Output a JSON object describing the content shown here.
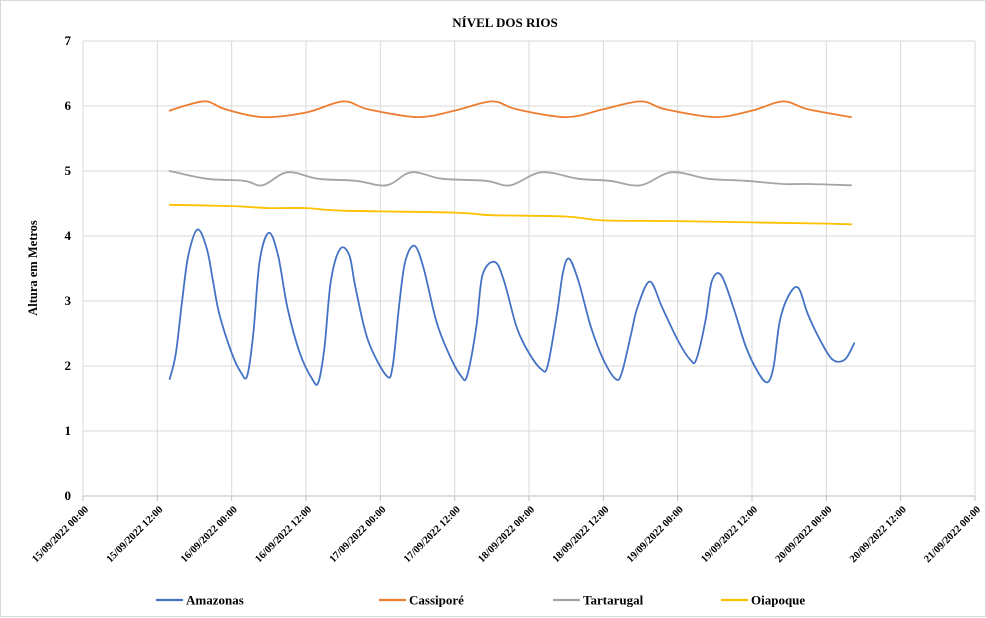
{
  "chart_data": {
    "type": "line",
    "title": "NÍVEL DOS RIOS",
    "xlabel": "",
    "ylabel": "Altura  em Metros",
    "ylim": [
      0,
      7
    ],
    "yticks": [
      "0",
      "1",
      "2",
      "3",
      "4",
      "5",
      "6",
      "7"
    ],
    "xlim": [
      "15/09/2022 00:00",
      "21/09/2022 00:00"
    ],
    "xticks": [
      "15/09/2022 00:00",
      "15/09/2022 12:00",
      "16/09/2022 00:00",
      "16/09/2022 12:00",
      "17/09/2022 00:00",
      "17/09/2022 12:00",
      "18/09/2022 00:00",
      "18/09/2022 12:00",
      "19/09/2022 00:00",
      "19/09/2022 12:00",
      "20/09/2022 00:00",
      "20/09/2022 12:00",
      "21/09/2022 00:00"
    ],
    "grid": true,
    "legend_position": "bottom",
    "series": [
      {
        "name": "Amazonas",
        "color": "#4472C4",
        "points": [
          [
            "15/09/2022 14:00",
            1.8
          ],
          [
            "15/09/2022 15:00",
            2.2
          ],
          [
            "15/09/2022 16:00",
            3.0
          ],
          [
            "15/09/2022 17:00",
            3.7
          ],
          [
            "15/09/2022 18:30",
            4.1
          ],
          [
            "15/09/2022 20:00",
            3.8
          ],
          [
            "15/09/2022 21:00",
            3.3
          ],
          [
            "15/09/2022 22:00",
            2.8
          ],
          [
            "16/09/2022 00:00",
            2.2
          ],
          [
            "16/09/2022 01:30",
            1.9
          ],
          [
            "16/09/2022 02:30",
            1.85
          ],
          [
            "16/09/2022 03:30",
            2.5
          ],
          [
            "16/09/2022 04:30",
            3.6
          ],
          [
            "16/09/2022 06:00",
            4.05
          ],
          [
            "16/09/2022 07:30",
            3.7
          ],
          [
            "16/09/2022 09:00",
            2.9
          ],
          [
            "16/09/2022 11:00",
            2.2
          ],
          [
            "16/09/2022 13:00",
            1.8
          ],
          [
            "16/09/2022 14:00",
            1.75
          ],
          [
            "16/09/2022 15:00",
            2.3
          ],
          [
            "16/09/2022 16:00",
            3.3
          ],
          [
            "16/09/2022 17:30",
            3.8
          ],
          [
            "16/09/2022 19:00",
            3.7
          ],
          [
            "16/09/2022 20:00",
            3.2
          ],
          [
            "16/09/2022 22:00",
            2.4
          ],
          [
            "17/09/2022 01:00",
            1.85
          ],
          [
            "17/09/2022 02:00",
            2.0
          ],
          [
            "17/09/2022 03:00",
            2.9
          ],
          [
            "17/09/2022 04:00",
            3.6
          ],
          [
            "17/09/2022 05:30",
            3.85
          ],
          [
            "17/09/2022 07:00",
            3.5
          ],
          [
            "17/09/2022 09:00",
            2.7
          ],
          [
            "17/09/2022 11:00",
            2.2
          ],
          [
            "17/09/2022 13:00",
            1.85
          ],
          [
            "17/09/2022 14:00",
            1.85
          ],
          [
            "17/09/2022 15:30",
            2.6
          ],
          [
            "17/09/2022 16:30",
            3.4
          ],
          [
            "17/09/2022 18:30",
            3.6
          ],
          [
            "17/09/2022 20:00",
            3.3
          ],
          [
            "17/09/2022 22:00",
            2.6
          ],
          [
            "18/09/2022 00:00",
            2.2
          ],
          [
            "18/09/2022 02:00",
            1.95
          ],
          [
            "18/09/2022 03:00",
            2.0
          ],
          [
            "18/09/2022 04:30",
            2.8
          ],
          [
            "18/09/2022 05:30",
            3.45
          ],
          [
            "18/09/2022 06:30",
            3.65
          ],
          [
            "18/09/2022 08:00",
            3.3
          ],
          [
            "18/09/2022 10:00",
            2.6
          ],
          [
            "18/09/2022 12:00",
            2.1
          ],
          [
            "18/09/2022 14:00",
            1.8
          ],
          [
            "18/09/2022 15:00",
            1.9
          ],
          [
            "18/09/2022 16:30",
            2.5
          ],
          [
            "18/09/2022 17:30",
            2.9
          ],
          [
            "18/09/2022 19:30",
            3.3
          ],
          [
            "18/09/2022 21:30",
            2.9
          ],
          [
            "19/09/2022 00:00",
            2.4
          ],
          [
            "19/09/2022 02:00",
            2.1
          ],
          [
            "19/09/2022 03:00",
            2.1
          ],
          [
            "19/09/2022 04:30",
            2.7
          ],
          [
            "19/09/2022 05:30",
            3.3
          ],
          [
            "19/09/2022 07:00",
            3.4
          ],
          [
            "19/09/2022 09:00",
            2.9
          ],
          [
            "19/09/2022 11:00",
            2.3
          ],
          [
            "19/09/2022 13:00",
            1.9
          ],
          [
            "19/09/2022 14:30",
            1.75
          ],
          [
            "19/09/2022 15:30",
            2.0
          ],
          [
            "19/09/2022 16:30",
            2.7
          ],
          [
            "19/09/2022 18:00",
            3.1
          ],
          [
            "19/09/2022 19:30",
            3.2
          ],
          [
            "19/09/2022 21:00",
            2.8
          ],
          [
            "19/09/2022 23:00",
            2.4
          ],
          [
            "20/09/2022 01:00",
            2.1
          ],
          [
            "20/09/2022 03:00",
            2.1
          ],
          [
            "20/09/2022 04:30",
            2.35
          ]
        ]
      },
      {
        "name": "Cassiporé",
        "color": "#ED7D31",
        "points": [
          [
            "15/09/2022 14:00",
            5.93
          ],
          [
            "15/09/2022 17:00",
            6.02
          ],
          [
            "15/09/2022 20:00",
            6.07
          ],
          [
            "15/09/2022 23:00",
            5.95
          ],
          [
            "16/09/2022 05:00",
            5.83
          ],
          [
            "16/09/2022 12:00",
            5.9
          ],
          [
            "16/09/2022 18:00",
            6.07
          ],
          [
            "16/09/2022 22:00",
            5.95
          ],
          [
            "17/09/2022 06:00",
            5.83
          ],
          [
            "17/09/2022 12:00",
            5.93
          ],
          [
            "17/09/2022 18:00",
            6.07
          ],
          [
            "17/09/2022 22:00",
            5.95
          ],
          [
            "18/09/2022 06:00",
            5.83
          ],
          [
            "18/09/2022 12:00",
            5.95
          ],
          [
            "18/09/2022 18:00",
            6.07
          ],
          [
            "18/09/2022 22:00",
            5.95
          ],
          [
            "19/09/2022 06:00",
            5.83
          ],
          [
            "19/09/2022 12:00",
            5.93
          ],
          [
            "19/09/2022 17:00",
            6.07
          ],
          [
            "19/09/2022 21:00",
            5.95
          ],
          [
            "20/09/2022 04:00",
            5.83
          ]
        ]
      },
      {
        "name": "Tartarugal",
        "color": "#A5A5A5",
        "points": [
          [
            "15/09/2022 14:00",
            5.0
          ],
          [
            "15/09/2022 20:00",
            4.88
          ],
          [
            "16/09/2022 02:00",
            4.85
          ],
          [
            "16/09/2022 05:00",
            4.78
          ],
          [
            "16/09/2022 09:00",
            4.98
          ],
          [
            "16/09/2022 14:00",
            4.88
          ],
          [
            "16/09/2022 20:00",
            4.85
          ],
          [
            "17/09/2022 01:00",
            4.78
          ],
          [
            "17/09/2022 05:00",
            4.98
          ],
          [
            "17/09/2022 10:00",
            4.88
          ],
          [
            "17/09/2022 17:00",
            4.85
          ],
          [
            "17/09/2022 21:00",
            4.78
          ],
          [
            "18/09/2022 02:00",
            4.98
          ],
          [
            "18/09/2022 08:00",
            4.88
          ],
          [
            "18/09/2022 13:00",
            4.85
          ],
          [
            "18/09/2022 18:00",
            4.78
          ],
          [
            "18/09/2022 23:00",
            4.98
          ],
          [
            "19/09/2022 05:00",
            4.88
          ],
          [
            "19/09/2022 11:00",
            4.85
          ],
          [
            "19/09/2022 17:00",
            4.8
          ],
          [
            "19/09/2022 21:00",
            4.8
          ],
          [
            "20/09/2022 04:00",
            4.78
          ]
        ]
      },
      {
        "name": "Oiapoque",
        "color": "#FFC000",
        "points": [
          [
            "15/09/2022 14:00",
            4.48
          ],
          [
            "16/09/2022 00:00",
            4.46
          ],
          [
            "16/09/2022 06:00",
            4.43
          ],
          [
            "16/09/2022 12:00",
            4.43
          ],
          [
            "16/09/2022 18:00",
            4.39
          ],
          [
            "17/09/2022 12:00",
            4.36
          ],
          [
            "17/09/2022 18:00",
            4.32
          ],
          [
            "18/09/2022 06:00",
            4.3
          ],
          [
            "18/09/2022 12:00",
            4.24
          ],
          [
            "19/09/2022 00:00",
            4.23
          ],
          [
            "19/09/2022 12:00",
            4.21
          ],
          [
            "20/09/2022 00:00",
            4.19
          ],
          [
            "20/09/2022 04:00",
            4.18
          ]
        ]
      }
    ]
  }
}
